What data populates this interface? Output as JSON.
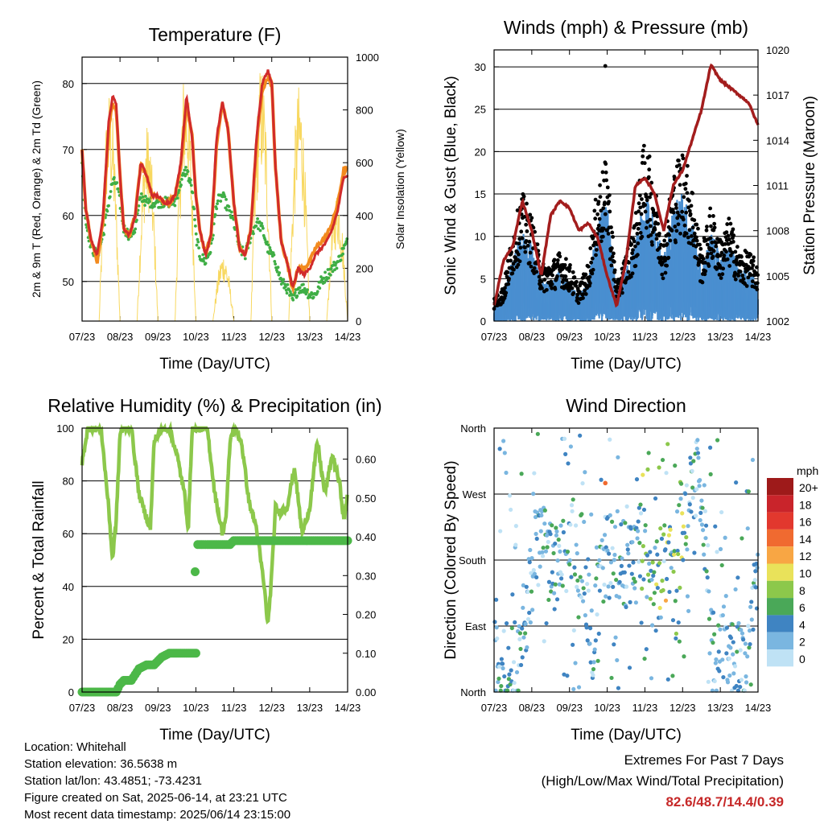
{
  "colors": {
    "temp_red": "#d12b2b",
    "temp_orange": "#f28a1e",
    "dewpoint_green": "#3fae45",
    "solar_yellow": "#f8d860",
    "wind_blue": "#4a8fd0",
    "gust_black": "#000000",
    "pressure_maroon": "#a31d1d",
    "rh_green": "#8cc84b",
    "precip_green": "#4cb848",
    "extremes_red": "#c62828"
  },
  "chart_data": [
    {
      "id": "temperature",
      "type": "line",
      "title": "Temperature (F)",
      "xlabel": "Time (Day/UTC)",
      "ylabel": "2m & 9m T (Red, Orange) & 2m Td (Green)",
      "y2label": "Solar Insolation (Yellow)",
      "xticks": [
        "07/23",
        "08/23",
        "09/23",
        "10/23",
        "11/23",
        "12/23",
        "13/23",
        "14/23"
      ],
      "ylim": [
        44,
        84
      ],
      "yticks": [
        "50",
        "60",
        "70",
        "80"
      ],
      "y2lim": [
        0,
        1000
      ],
      "y2ticks": [
        "0",
        "200",
        "400",
        "600",
        "800",
        "1000"
      ],
      "grid": true,
      "x_days": [
        0,
        0.1,
        0.25,
        0.4,
        0.55,
        0.7,
        0.8,
        0.9,
        1.0,
        1.1,
        1.25,
        1.4,
        1.55,
        1.7,
        1.85,
        2.0,
        2.15,
        2.3,
        2.45,
        2.6,
        2.75,
        2.9,
        3.0,
        3.1,
        3.25,
        3.4,
        3.55,
        3.7,
        3.85,
        4.0,
        4.15,
        4.3,
        4.45,
        4.6,
        4.75,
        4.9,
        5.0,
        5.1,
        5.25,
        5.4,
        5.55,
        5.7,
        5.85,
        6.0,
        6.15,
        6.3,
        6.45,
        6.6,
        6.75,
        6.9,
        7.0
      ],
      "series": [
        {
          "name": "2m T",
          "values": [
            70,
            61,
            56,
            54,
            60,
            74,
            78,
            77,
            66,
            58,
            57,
            60,
            68,
            66,
            63,
            63,
            62,
            62,
            63,
            68,
            78,
            72,
            63,
            58,
            54,
            57,
            72,
            77,
            73,
            62,
            55,
            54,
            58,
            72,
            80,
            82,
            80,
            67,
            56,
            53,
            49,
            52,
            51,
            52,
            54,
            55,
            56,
            58,
            61,
            66,
            66
          ]
        },
        {
          "name": "9m T",
          "values": [
            70,
            61,
            56,
            53,
            59,
            73,
            77,
            76,
            66,
            58,
            57,
            60,
            68,
            66,
            63,
            63,
            62,
            62,
            63,
            67,
            77,
            72,
            63,
            58,
            54,
            57,
            71,
            77,
            73,
            62,
            55,
            54,
            58,
            71,
            79,
            81,
            80,
            67,
            56,
            53,
            49,
            52,
            52,
            53,
            55,
            56,
            57,
            59,
            62,
            67,
            67
          ]
        },
        {
          "name": "2m Td",
          "values": [
            68,
            59,
            55,
            54,
            57,
            62,
            65,
            65,
            62,
            58,
            57,
            58,
            63,
            62,
            62,
            62,
            62,
            62,
            62,
            65,
            67,
            64,
            57,
            54,
            53,
            55,
            62,
            63,
            61,
            59,
            55,
            54,
            57,
            59,
            58,
            55,
            54,
            53,
            50,
            49,
            47,
            49,
            49,
            48,
            48,
            50,
            51,
            52,
            53,
            55,
            56
          ]
        },
        {
          "name": "Solar Insolation",
          "values": [
            null
          ]
        }
      ]
    },
    {
      "id": "winds",
      "type": "line",
      "title": "Winds (mph) & Pressure (mb)",
      "xlabel": "Time (Day/UTC)",
      "ylabel": "Sonic Wind & Gust (Blue, Black)",
      "y2label": "Station Pressure (Maroon)",
      "xticks": [
        "07/23",
        "08/23",
        "09/23",
        "10/23",
        "11/23",
        "12/23",
        "13/23",
        "14/23"
      ],
      "ylim": [
        0,
        32
      ],
      "yticks": [
        "0",
        "5",
        "10",
        "15",
        "20",
        "25",
        "30"
      ],
      "y2lim": [
        1002,
        1020
      ],
      "y2ticks": [
        "1002",
        "1005",
        "1008",
        "1011",
        "1014",
        "1017",
        "1020"
      ],
      "grid": true,
      "x_days": [
        0,
        0.25,
        0.5,
        0.75,
        1.0,
        1.25,
        1.5,
        1.75,
        2.0,
        2.25,
        2.5,
        2.75,
        3.0,
        3.25,
        3.5,
        3.75,
        4.0,
        4.25,
        4.5,
        4.75,
        5.0,
        5.25,
        5.5,
        5.75,
        6.0,
        6.25,
        6.5,
        6.75,
        7.0
      ],
      "series": [
        {
          "name": "Wind",
          "values": [
            1,
            2,
            5,
            7,
            6,
            3,
            3,
            4,
            3,
            2,
            3,
            8,
            9,
            2,
            4,
            6,
            10,
            8,
            5,
            9,
            10,
            8,
            4,
            7,
            5,
            6,
            4,
            4,
            3
          ]
        },
        {
          "name": "Gust",
          "values": [
            2,
            3,
            8,
            11,
            9,
            5,
            5,
            6,
            5,
            3,
            5,
            12,
            14,
            3,
            6,
            9,
            16,
            12,
            7,
            13,
            15,
            12,
            6,
            10,
            7,
            9,
            6,
            6,
            5
          ]
        },
        {
          "name": "Station Pressure",
          "values": [
            1003,
            1006,
            1007,
            1010,
            1008,
            1005,
            1009,
            1010,
            1009.5,
            1008,
            1008.5,
            1007.5,
            1005,
            1003,
            1006,
            1011,
            1011.5,
            1010.5,
            1008,
            1011,
            1012,
            1014,
            1016,
            1019,
            1018,
            1017.5,
            1017,
            1016.5,
            1015
          ]
        }
      ]
    },
    {
      "id": "humidity",
      "type": "line",
      "title": "Relative Humidity (%) & Precipitation (in)",
      "xlabel": "Time (Day/UTC)",
      "ylabel": "Percent & Total Rainfall",
      "xticks": [
        "07/23",
        "08/23",
        "09/23",
        "10/23",
        "11/23",
        "12/23",
        "13/23",
        "14/23"
      ],
      "ylim": [
        0,
        100
      ],
      "yticks": [
        "0",
        "20",
        "40",
        "60",
        "80",
        "100"
      ],
      "y2lim": [
        0,
        0.68
      ],
      "y2ticks": [
        "0.00",
        "0.10",
        "0.20",
        "0.30",
        "0.40",
        "0.50",
        "0.60"
      ],
      "grid": true,
      "x_days": [
        0,
        0.15,
        0.3,
        0.5,
        0.7,
        0.8,
        0.9,
        1.0,
        1.1,
        1.3,
        1.5,
        1.7,
        1.8,
        1.9,
        2.1,
        2.3,
        2.5,
        2.7,
        2.8,
        2.9,
        3.0,
        3.1,
        3.3,
        3.5,
        3.7,
        3.8,
        3.9,
        4.0,
        4.2,
        4.4,
        4.6,
        4.8,
        4.9,
        5.0,
        5.1,
        5.2,
        5.4,
        5.6,
        5.8,
        6.0,
        6.2,
        6.4,
        6.6,
        6.8,
        6.9,
        7.0
      ],
      "series": [
        {
          "name": "Relative Humidity",
          "values": [
            87,
            100,
            100,
            100,
            70,
            50,
            65,
            98,
            100,
            100,
            75,
            66,
            62,
            95,
            100,
            100,
            90,
            75,
            62,
            100,
            100,
            100,
            100,
            75,
            60,
            67,
            95,
            100,
            95,
            72,
            62,
            40,
            25,
            45,
            70,
            68,
            70,
            85,
            60,
            70,
            95,
            75,
            90,
            78,
            65,
            75
          ]
        },
        {
          "name": "Total Precipitation",
          "values": [
            0,
            0,
            0,
            0,
            0,
            0,
            0,
            0.02,
            0.03,
            0.03,
            0.06,
            0.07,
            0.07,
            0.07,
            0.09,
            0.1,
            0.1,
            0.1,
            0.1,
            0.1,
            0.38,
            0.38,
            0.38,
            0.38,
            0.38,
            0.38,
            0.38,
            0.39,
            0.39,
            0.39,
            0.39,
            0.39,
            0.39,
            0.39,
            0.39,
            0.39,
            0.39,
            0.39,
            0.39,
            0.39,
            0.39,
            0.39,
            0.39,
            0.39,
            0.39,
            0.39
          ]
        }
      ]
    },
    {
      "id": "wind_direction",
      "type": "scatter",
      "title": "Wind Direction",
      "xlabel": "Time (Day/UTC)",
      "ylabel": "Direction (Colored By Speed)",
      "xticks": [
        "07/23",
        "08/23",
        "09/23",
        "10/23",
        "11/23",
        "12/23",
        "13/23",
        "14/23"
      ],
      "ylim": [
        0,
        360
      ],
      "yticks": [
        "North",
        "East",
        "South",
        "West",
        "North"
      ],
      "grid": true,
      "legend_title": "mph",
      "legend_labels": [
        "20+",
        "18",
        "16",
        "14",
        "12",
        "10",
        "8",
        "6",
        "4",
        "2",
        "0"
      ],
      "legend_colors": [
        "#9e1a1a",
        "#c9242b",
        "#e2382e",
        "#f06a30",
        "#f8a644",
        "#e9e25a",
        "#8cc84b",
        "#4aa858",
        "#3f84c2",
        "#7ab6e0",
        "#bfe2f5"
      ],
      "legend_placement": "right",
      "x_days": [
        0.3,
        0.5,
        0.6,
        0.7,
        1.1,
        1.4,
        1.6,
        2.1,
        2.4,
        2.6,
        2.9,
        3.2,
        3.4,
        3.6,
        3.9,
        4.1,
        4.3,
        4.6,
        4.8,
        5.0,
        5.3,
        5.5,
        5.8,
        6.1,
        6.4,
        6.7,
        6.9
      ],
      "values": [
        40,
        30,
        45,
        60,
        200,
        190,
        170,
        210,
        175,
        60,
        180,
        185,
        175,
        170,
        200,
        175,
        165,
        180,
        200,
        230,
        280,
        300,
        40,
        60,
        45,
        30,
        150
      ]
    }
  ],
  "info": {
    "location": "Location: Whitehall",
    "elevation": "Station elevation: 36.5638 m",
    "latlon": "Station lat/lon: 43.4851; -73.4231",
    "created": "Figure created on Sat, 2025-06-14, at 23:21 UTC",
    "recent": "Most recent data timestamp: 2025/06/14 23:15:00"
  },
  "extremes": {
    "line1": "Extremes For Past 7 Days",
    "line2": "(High/Low/Max Wind/Total Precipitation)",
    "values": "82.6/48.7/14.4/0.39"
  }
}
